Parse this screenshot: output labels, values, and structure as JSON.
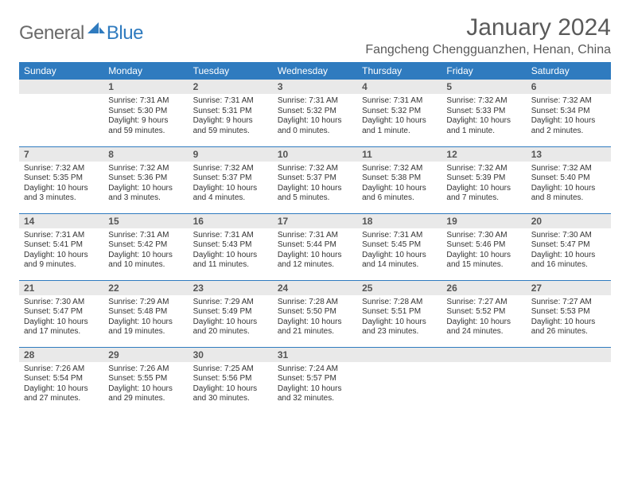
{
  "brand": {
    "part1": "General",
    "part2": "Blue"
  },
  "title": "January 2024",
  "location": "Fangcheng Chengguanzhen, Henan, China",
  "colors": {
    "header_bg": "#2f7bbf",
    "header_text": "#ffffff",
    "daynum_bg": "#e9e9e9",
    "rule": "#2f7bbf",
    "logo_gray": "#6a6a6a",
    "logo_blue": "#2f7bbf",
    "page_bg": "#ffffff"
  },
  "fonts": {
    "body_pt": 10,
    "daynum_pt": 12,
    "header_pt": 12,
    "title_pt": 30,
    "location_pt": 16
  },
  "weekdays": [
    "Sunday",
    "Monday",
    "Tuesday",
    "Wednesday",
    "Thursday",
    "Friday",
    "Saturday"
  ],
  "weeks": [
    [
      {
        "n": "",
        "lines": [
          "",
          "",
          "",
          ""
        ]
      },
      {
        "n": "1",
        "lines": [
          "Sunrise: 7:31 AM",
          "Sunset: 5:30 PM",
          "Daylight: 9 hours",
          "and 59 minutes."
        ]
      },
      {
        "n": "2",
        "lines": [
          "Sunrise: 7:31 AM",
          "Sunset: 5:31 PM",
          "Daylight: 9 hours",
          "and 59 minutes."
        ]
      },
      {
        "n": "3",
        "lines": [
          "Sunrise: 7:31 AM",
          "Sunset: 5:32 PM",
          "Daylight: 10 hours",
          "and 0 minutes."
        ]
      },
      {
        "n": "4",
        "lines": [
          "Sunrise: 7:31 AM",
          "Sunset: 5:32 PM",
          "Daylight: 10 hours",
          "and 1 minute."
        ]
      },
      {
        "n": "5",
        "lines": [
          "Sunrise: 7:32 AM",
          "Sunset: 5:33 PM",
          "Daylight: 10 hours",
          "and 1 minute."
        ]
      },
      {
        "n": "6",
        "lines": [
          "Sunrise: 7:32 AM",
          "Sunset: 5:34 PM",
          "Daylight: 10 hours",
          "and 2 minutes."
        ]
      }
    ],
    [
      {
        "n": "7",
        "lines": [
          "Sunrise: 7:32 AM",
          "Sunset: 5:35 PM",
          "Daylight: 10 hours",
          "and 3 minutes."
        ]
      },
      {
        "n": "8",
        "lines": [
          "Sunrise: 7:32 AM",
          "Sunset: 5:36 PM",
          "Daylight: 10 hours",
          "and 3 minutes."
        ]
      },
      {
        "n": "9",
        "lines": [
          "Sunrise: 7:32 AM",
          "Sunset: 5:37 PM",
          "Daylight: 10 hours",
          "and 4 minutes."
        ]
      },
      {
        "n": "10",
        "lines": [
          "Sunrise: 7:32 AM",
          "Sunset: 5:37 PM",
          "Daylight: 10 hours",
          "and 5 minutes."
        ]
      },
      {
        "n": "11",
        "lines": [
          "Sunrise: 7:32 AM",
          "Sunset: 5:38 PM",
          "Daylight: 10 hours",
          "and 6 minutes."
        ]
      },
      {
        "n": "12",
        "lines": [
          "Sunrise: 7:32 AM",
          "Sunset: 5:39 PM",
          "Daylight: 10 hours",
          "and 7 minutes."
        ]
      },
      {
        "n": "13",
        "lines": [
          "Sunrise: 7:32 AM",
          "Sunset: 5:40 PM",
          "Daylight: 10 hours",
          "and 8 minutes."
        ]
      }
    ],
    [
      {
        "n": "14",
        "lines": [
          "Sunrise: 7:31 AM",
          "Sunset: 5:41 PM",
          "Daylight: 10 hours",
          "and 9 minutes."
        ]
      },
      {
        "n": "15",
        "lines": [
          "Sunrise: 7:31 AM",
          "Sunset: 5:42 PM",
          "Daylight: 10 hours",
          "and 10 minutes."
        ]
      },
      {
        "n": "16",
        "lines": [
          "Sunrise: 7:31 AM",
          "Sunset: 5:43 PM",
          "Daylight: 10 hours",
          "and 11 minutes."
        ]
      },
      {
        "n": "17",
        "lines": [
          "Sunrise: 7:31 AM",
          "Sunset: 5:44 PM",
          "Daylight: 10 hours",
          "and 12 minutes."
        ]
      },
      {
        "n": "18",
        "lines": [
          "Sunrise: 7:31 AM",
          "Sunset: 5:45 PM",
          "Daylight: 10 hours",
          "and 14 minutes."
        ]
      },
      {
        "n": "19",
        "lines": [
          "Sunrise: 7:30 AM",
          "Sunset: 5:46 PM",
          "Daylight: 10 hours",
          "and 15 minutes."
        ]
      },
      {
        "n": "20",
        "lines": [
          "Sunrise: 7:30 AM",
          "Sunset: 5:47 PM",
          "Daylight: 10 hours",
          "and 16 minutes."
        ]
      }
    ],
    [
      {
        "n": "21",
        "lines": [
          "Sunrise: 7:30 AM",
          "Sunset: 5:47 PM",
          "Daylight: 10 hours",
          "and 17 minutes."
        ]
      },
      {
        "n": "22",
        "lines": [
          "Sunrise: 7:29 AM",
          "Sunset: 5:48 PM",
          "Daylight: 10 hours",
          "and 19 minutes."
        ]
      },
      {
        "n": "23",
        "lines": [
          "Sunrise: 7:29 AM",
          "Sunset: 5:49 PM",
          "Daylight: 10 hours",
          "and 20 minutes."
        ]
      },
      {
        "n": "24",
        "lines": [
          "Sunrise: 7:28 AM",
          "Sunset: 5:50 PM",
          "Daylight: 10 hours",
          "and 21 minutes."
        ]
      },
      {
        "n": "25",
        "lines": [
          "Sunrise: 7:28 AM",
          "Sunset: 5:51 PM",
          "Daylight: 10 hours",
          "and 23 minutes."
        ]
      },
      {
        "n": "26",
        "lines": [
          "Sunrise: 7:27 AM",
          "Sunset: 5:52 PM",
          "Daylight: 10 hours",
          "and 24 minutes."
        ]
      },
      {
        "n": "27",
        "lines": [
          "Sunrise: 7:27 AM",
          "Sunset: 5:53 PM",
          "Daylight: 10 hours",
          "and 26 minutes."
        ]
      }
    ],
    [
      {
        "n": "28",
        "lines": [
          "Sunrise: 7:26 AM",
          "Sunset: 5:54 PM",
          "Daylight: 10 hours",
          "and 27 minutes."
        ]
      },
      {
        "n": "29",
        "lines": [
          "Sunrise: 7:26 AM",
          "Sunset: 5:55 PM",
          "Daylight: 10 hours",
          "and 29 minutes."
        ]
      },
      {
        "n": "30",
        "lines": [
          "Sunrise: 7:25 AM",
          "Sunset: 5:56 PM",
          "Daylight: 10 hours",
          "and 30 minutes."
        ]
      },
      {
        "n": "31",
        "lines": [
          "Sunrise: 7:24 AM",
          "Sunset: 5:57 PM",
          "Daylight: 10 hours",
          "and 32 minutes."
        ]
      },
      {
        "n": "",
        "lines": [
          "",
          "",
          "",
          ""
        ]
      },
      {
        "n": "",
        "lines": [
          "",
          "",
          "",
          ""
        ]
      },
      {
        "n": "",
        "lines": [
          "",
          "",
          "",
          ""
        ]
      }
    ]
  ]
}
